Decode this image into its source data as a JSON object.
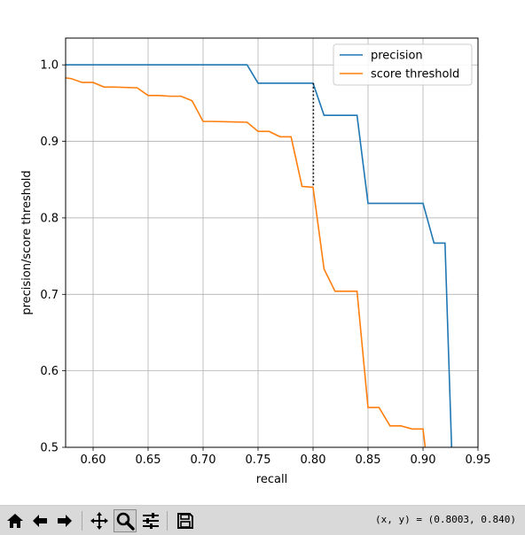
{
  "chart_data": {
    "type": "line",
    "xlabel": "recall",
    "ylabel": "precision/score threshold",
    "xlim": [
      0.575,
      0.95
    ],
    "ylim": [
      0.5,
      1.035
    ],
    "xticks": [
      0.6,
      0.65,
      0.7,
      0.75,
      0.8,
      0.85,
      0.9,
      0.95
    ],
    "xtick_labels": [
      "0.60",
      "0.65",
      "0.70",
      "0.75",
      "0.80",
      "0.85",
      "0.90",
      "0.95"
    ],
    "yticks": [
      0.5,
      0.6,
      0.7,
      0.8,
      0.9,
      1.0
    ],
    "ytick_labels": [
      "0.5",
      "0.6",
      "0.7",
      "0.8",
      "0.9",
      "1.0"
    ],
    "grid": true,
    "legend_position": "top-right",
    "series": [
      {
        "name": "precision",
        "color": "#1f77b4",
        "points": [
          [
            0.575,
            1.0
          ],
          [
            0.74,
            1.0
          ],
          [
            0.75,
            0.976
          ],
          [
            0.8,
            0.976
          ],
          [
            0.81,
            0.934
          ],
          [
            0.84,
            0.934
          ],
          [
            0.85,
            0.819
          ],
          [
            0.9,
            0.819
          ],
          [
            0.91,
            0.767
          ],
          [
            0.92,
            0.767
          ],
          [
            0.926,
            0.5
          ]
        ]
      },
      {
        "name": "score threshold",
        "color": "#ff7f0e",
        "points": [
          [
            0.575,
            0.983
          ],
          [
            0.58,
            0.982
          ],
          [
            0.59,
            0.977
          ],
          [
            0.6,
            0.977
          ],
          [
            0.61,
            0.971
          ],
          [
            0.62,
            0.971
          ],
          [
            0.64,
            0.97
          ],
          [
            0.65,
            0.96
          ],
          [
            0.66,
            0.96
          ],
          [
            0.67,
            0.959
          ],
          [
            0.68,
            0.959
          ],
          [
            0.69,
            0.953
          ],
          [
            0.7,
            0.926
          ],
          [
            0.71,
            0.926
          ],
          [
            0.74,
            0.925
          ],
          [
            0.75,
            0.913
          ],
          [
            0.76,
            0.913
          ],
          [
            0.77,
            0.906
          ],
          [
            0.78,
            0.906
          ],
          [
            0.79,
            0.841
          ],
          [
            0.8,
            0.84
          ],
          [
            0.81,
            0.733
          ],
          [
            0.82,
            0.704
          ],
          [
            0.83,
            0.704
          ],
          [
            0.84,
            0.704
          ],
          [
            0.85,
            0.552
          ],
          [
            0.86,
            0.552
          ],
          [
            0.87,
            0.528
          ],
          [
            0.88,
            0.528
          ],
          [
            0.89,
            0.524
          ],
          [
            0.9,
            0.524
          ],
          [
            0.902,
            0.5
          ]
        ]
      }
    ],
    "annotations": [
      {
        "type": "vertical-dotted-line",
        "x": 0.8003,
        "y_from": 0.84,
        "y_to": 0.976,
        "color": "#000000"
      }
    ]
  },
  "toolbar": {
    "icons": [
      "home-icon",
      "back-arrow-icon",
      "forward-arrow-icon",
      "pan-icon",
      "zoom-icon",
      "configure-subplots-icon",
      "save-icon"
    ],
    "coordinates_readout": "(x, y) = (0.8003, 0.840)"
  }
}
